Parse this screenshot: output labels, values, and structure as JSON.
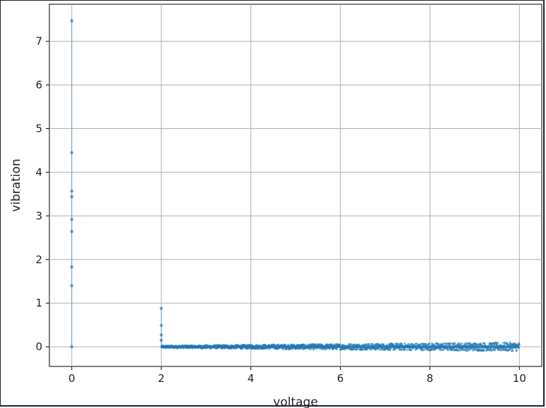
{
  "chart_data": {
    "type": "scatter",
    "title": "",
    "xlabel": "voltage",
    "ylabel": "vibration",
    "xlim": [
      -0.5,
      10.5
    ],
    "ylim": [
      -0.45,
      7.85
    ],
    "xticks": [
      0,
      2,
      4,
      6,
      8,
      10
    ],
    "yticks": [
      0,
      1,
      2,
      3,
      4,
      5,
      6,
      7
    ],
    "grid": true,
    "marker_color": "#1f77b4",
    "spikes": [
      {
        "x": 0,
        "y": 7.47
      },
      {
        "x": 0,
        "y": 4.45
      },
      {
        "x": 0,
        "y": 3.57
      },
      {
        "x": 0,
        "y": 3.44
      },
      {
        "x": 0,
        "y": 2.92
      },
      {
        "x": 0,
        "y": 2.64
      },
      {
        "x": 0,
        "y": 1.83
      },
      {
        "x": 0,
        "y": 1.4
      },
      {
        "x": 0,
        "y": 0.0
      },
      {
        "x": 2,
        "y": 0.88
      },
      {
        "x": 2,
        "y": 0.49
      },
      {
        "x": 2,
        "y": 0.27
      },
      {
        "x": 2,
        "y": 0.15
      }
    ],
    "band": {
      "x_start": 2.0,
      "x_end": 10.0,
      "center": 0.0,
      "half_width_start": 0.03,
      "half_width_end": 0.1
    }
  }
}
